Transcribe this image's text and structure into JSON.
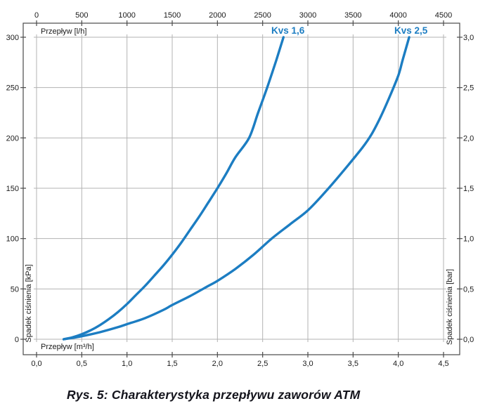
{
  "caption": {
    "text": "Rys. 5: Charakterystyka przepływu zaworów ATM"
  },
  "chart_data": {
    "type": "line",
    "title": "",
    "grid": true,
    "x_axis": {
      "top": {
        "label": "Przepływ [l/h]",
        "range": [
          0,
          4500
        ],
        "ticks": [
          "0",
          "500",
          "1000",
          "1500",
          "2000",
          "2500",
          "3000",
          "3500",
          "4000",
          "4500"
        ]
      },
      "bottom": {
        "label": "Przepływ [m³/h]",
        "range": [
          0,
          4.5
        ],
        "ticks": [
          "0,0",
          "0,5",
          "1,0",
          "1,5",
          "2,0",
          "2,5",
          "3,0",
          "3,5",
          "4,0",
          "4,5"
        ]
      }
    },
    "y_axis": {
      "left": {
        "label": "Spadek ciśnienia [kPa]",
        "range": [
          0,
          300
        ],
        "ticks": [
          "0",
          "50",
          "100",
          "150",
          "200",
          "250",
          "300"
        ]
      },
      "right": {
        "label": "Spadek ciśnienia [bar]",
        "range": [
          0,
          3.0
        ],
        "ticks": [
          "0,0",
          "0,5",
          "1,0",
          "1,5",
          "2,0",
          "2,5",
          "3,0"
        ]
      }
    },
    "series": [
      {
        "name": "Kvs 1,6",
        "kvs": 1.6,
        "label_anchor_x_m3h": 2.78,
        "points_m3h_kpa": [
          [
            0.3,
            0
          ],
          [
            0.4,
            2
          ],
          [
            0.5,
            5
          ],
          [
            0.6,
            9
          ],
          [
            0.7,
            14
          ],
          [
            0.8,
            20
          ],
          [
            0.9,
            27
          ],
          [
            1.0,
            35
          ],
          [
            1.1,
            44
          ],
          [
            1.2,
            53
          ],
          [
            1.3,
            63
          ],
          [
            1.4,
            73
          ],
          [
            1.5,
            84
          ],
          [
            1.6,
            96
          ],
          [
            1.7,
            109
          ],
          [
            1.8,
            122
          ],
          [
            1.9,
            136
          ],
          [
            2.0,
            150
          ],
          [
            2.1,
            165
          ],
          [
            2.2,
            181
          ],
          [
            2.35,
            200
          ],
          [
            2.45,
            225
          ],
          [
            2.55,
            250
          ],
          [
            2.65,
            277
          ],
          [
            2.73,
            300
          ]
        ]
      },
      {
        "name": "Kvs 2,5",
        "kvs": 2.5,
        "label_anchor_x_m3h": 4.14,
        "points_m3h_kpa": [
          [
            0.3,
            0
          ],
          [
            0.5,
            3
          ],
          [
            0.7,
            7
          ],
          [
            0.9,
            12
          ],
          [
            1.0,
            15
          ],
          [
            1.2,
            21
          ],
          [
            1.4,
            29
          ],
          [
            1.5,
            34
          ],
          [
            1.7,
            43
          ],
          [
            1.9,
            53
          ],
          [
            2.0,
            58
          ],
          [
            2.2,
            70
          ],
          [
            2.4,
            84
          ],
          [
            2.6,
            100
          ],
          [
            2.8,
            114
          ],
          [
            3.0,
            128
          ],
          [
            3.2,
            147
          ],
          [
            3.4,
            168
          ],
          [
            3.6,
            190
          ],
          [
            3.7,
            203
          ],
          [
            3.8,
            220
          ],
          [
            3.9,
            240
          ],
          [
            4.0,
            262
          ],
          [
            4.05,
            278
          ],
          [
            4.12,
            300
          ]
        ]
      }
    ],
    "colors": {
      "curve": "#1c7dc2",
      "grid": "#b3b3b3",
      "frame": "#4a4a4a",
      "text": "#1a1a1a"
    }
  }
}
